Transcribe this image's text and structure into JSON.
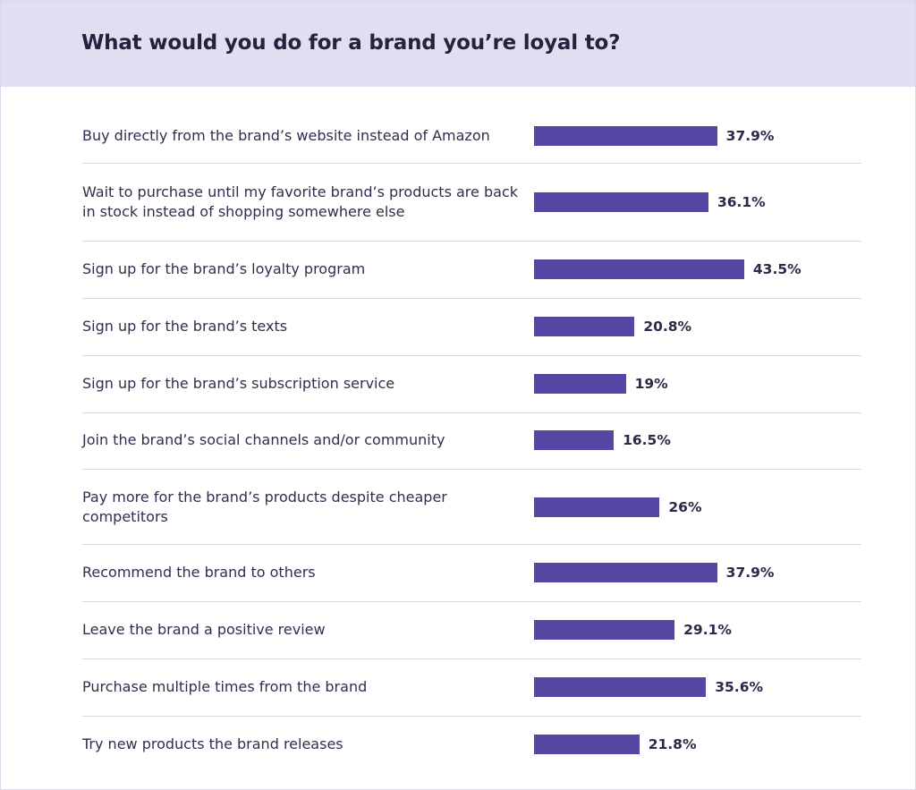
{
  "chart_data": {
    "type": "bar",
    "orientation": "horizontal",
    "title": "What would you do for a brand you’re loyal to?",
    "unit": "%",
    "categories": [
      "Buy directly from the brand’s website instead of Amazon",
      "Wait to purchase until my favorite brand’s products are back in stock instead of shopping somewhere else",
      "Sign up for the brand’s loyalty program",
      "Sign up for the brand’s texts",
      "Sign up for the brand’s subscription service",
      "Join the brand’s social channels and/or community",
      "Pay more for the brand’s products despite cheaper competitors",
      "Recommend the brand to others",
      "Leave the brand a positive review",
      "Purchase multiple times from the brand",
      "Try new products the brand releases"
    ],
    "values": [
      37.9,
      36.1,
      43.5,
      20.8,
      19,
      16.5,
      26,
      37.9,
      29.1,
      35.6,
      21.8
    ],
    "value_labels": [
      "37.9%",
      "36.1%",
      "43.5%",
      "20.8%",
      "19%",
      "16.5%",
      "26%",
      "37.9%",
      "29.1%",
      "35.6%",
      "21.8%"
    ],
    "xlim": [
      0,
      100
    ],
    "grid": false,
    "legend": "none",
    "colors": {
      "bar": "#5546a3",
      "header_background": "#e2ddf1",
      "title_text": "#23233f",
      "label_text": "#2f2f4d",
      "separator": "#d9d9e0"
    }
  }
}
